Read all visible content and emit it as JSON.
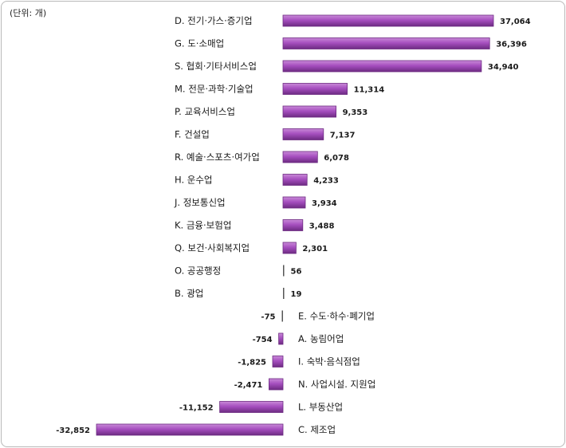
{
  "unit_label": "(단위: 개)",
  "colors": {
    "bar": "#a64fbf",
    "bar_light": "#c98ad8",
    "bar_dark": "#6d2b82",
    "zero_line": "#555555"
  },
  "chart_data": {
    "type": "bar",
    "orientation": "horizontal",
    "categories": [
      "D. 전기·가스·증기업",
      "G. 도·소매업",
      "S. 협회·기타서비스업",
      "M. 전문·과학·기술업",
      "P. 교육서비스업",
      "F. 건설업",
      "R. 예술·스포츠·여가업",
      "H. 운수업",
      "J. 정보통신업",
      "K. 금융·보험업",
      "Q. 보건·사회복지업",
      "O. 공공행정",
      "B. 광업",
      "E. 수도·하수·폐기업",
      "A. 농림어업",
      "I. 숙박·음식점업",
      "N. 사업시설. 지원업",
      "L. 부동산업",
      "C. 제조업"
    ],
    "values": [
      37064,
      36396,
      34940,
      11314,
      9353,
      7137,
      6078,
      4233,
      3934,
      3488,
      2301,
      56,
      19,
      -75,
      -754,
      -1825,
      -2471,
      -11152,
      -32852
    ],
    "value_labels": [
      "37,064",
      "36,396",
      "34,940",
      "11,314",
      "9,353",
      "7,137",
      "6,078",
      "4,233",
      "3,934",
      "3,488",
      "2,301",
      "56",
      "19",
      "-75",
      "-754",
      "-1,825",
      "-2,471",
      "-11,152",
      "-32,852"
    ],
    "title": "",
    "xlabel": "",
    "ylabel": "",
    "grid": false,
    "legend": "none"
  }
}
